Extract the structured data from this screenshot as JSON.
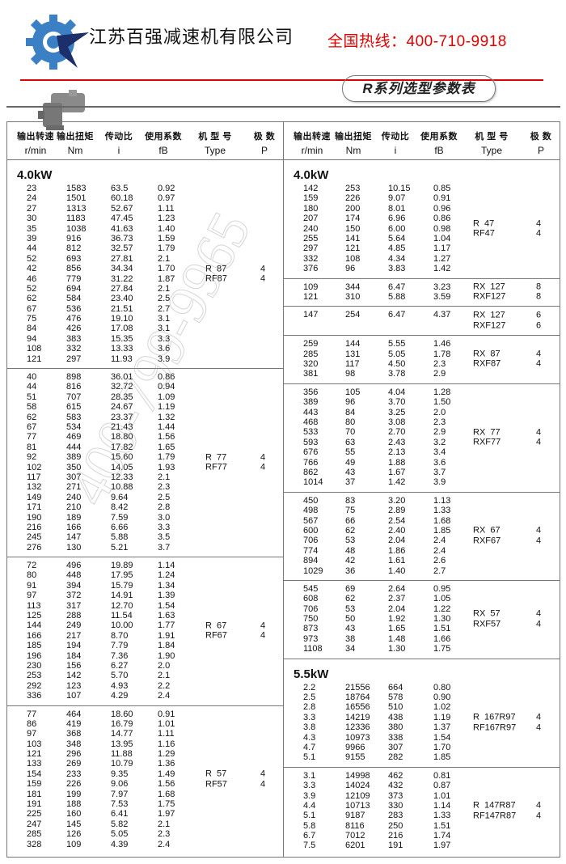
{
  "header": {
    "company": "江苏百强减速机有限公司",
    "hotline": "全国热线：400-710-9918",
    "title": "R系列选型参数表",
    "brand_colors": {
      "gear": "#3b7fc4",
      "star": "#1c2f6b",
      "hotline": "#e00000"
    }
  },
  "watermark": "400-799-9965",
  "columns": {
    "zh": [
      "输出转速",
      "输出扭矩",
      "传动比",
      "使用系数",
      "机 型 号",
      "极 数"
    ],
    "en": [
      "r/min",
      "Nm",
      "i",
      "fB",
      "Type",
      "P"
    ]
  },
  "left": [
    {
      "kw": "4.0kW",
      "types": [
        "R  87",
        "RF87"
      ],
      "poles": [
        "4",
        "4"
      ],
      "rows": [
        [
          "23",
          "1583",
          "63.5",
          "0.92"
        ],
        [
          "24",
          "1501",
          "60.18",
          "0.97"
        ],
        [
          "27",
          "1313",
          "52.67",
          "1.11"
        ],
        [
          "30",
          "1183",
          "47.45",
          "1.23"
        ],
        [
          "35",
          "1038",
          "41.63",
          "1.40"
        ],
        [
          "39",
          "916",
          "36.73",
          "1.59"
        ],
        [
          "44",
          "812",
          "32.57",
          "1.79"
        ],
        [
          "52",
          "693",
          "27.81",
          "2.1"
        ],
        [
          "42",
          "856",
          "34.34",
          "1.70"
        ],
        [
          "46",
          "779",
          "31.22",
          "1.87"
        ],
        [
          "52",
          "694",
          "27.84",
          "2.1"
        ],
        [
          "62",
          "584",
          "23.40",
          "2.5"
        ],
        [
          "67",
          "536",
          "21.51",
          "2.7"
        ],
        [
          "75",
          "476",
          "19.10",
          "3.1"
        ],
        [
          "84",
          "426",
          "17.08",
          "3.1"
        ],
        [
          "94",
          "383",
          "15.35",
          "3.3"
        ],
        [
          "108",
          "332",
          "13.33",
          "3.6"
        ],
        [
          "121",
          "297",
          "11.93",
          "3.9"
        ]
      ]
    },
    {
      "types": [
        "R  77",
        "RF77"
      ],
      "poles": [
        "4",
        "4"
      ],
      "rows": [
        [
          "40",
          "898",
          "36.01",
          "0.86"
        ],
        [
          "44",
          "816",
          "32.72",
          "0.94"
        ],
        [
          "51",
          "707",
          "28.35",
          "1.09"
        ],
        [
          "58",
          "615",
          "24.67",
          "1.19"
        ],
        [
          "62",
          "583",
          "23.37",
          "1.32"
        ],
        [
          "67",
          "534",
          "21.43",
          "1.44"
        ],
        [
          "77",
          "469",
          "18.80",
          "1.56"
        ],
        [
          "81",
          "444",
          "17.82",
          "1.65"
        ],
        [
          "92",
          "389",
          "15.60",
          "1.79"
        ],
        [
          "102",
          "350",
          "14.05",
          "1.93"
        ],
        [
          "117",
          "307",
          "12.33",
          "2.1"
        ],
        [
          "132",
          "271",
          "10.88",
          "2.3"
        ],
        [
          "149",
          "240",
          "9.64",
          "2.5"
        ],
        [
          "171",
          "210",
          "8.42",
          "2.8"
        ],
        [
          "190",
          "189",
          "7.59",
          "3.0"
        ],
        [
          "216",
          "166",
          "6.66",
          "3.3"
        ],
        [
          "245",
          "147",
          "5.88",
          "3.5"
        ],
        [
          "276",
          "130",
          "5.21",
          "3.7"
        ]
      ]
    },
    {
      "types": [
        "R  67",
        "RF67"
      ],
      "poles": [
        "4",
        "4"
      ],
      "rows": [
        [
          "72",
          "496",
          "19.89",
          "1.14"
        ],
        [
          "80",
          "448",
          "17.95",
          "1.24"
        ],
        [
          "91",
          "394",
          "15.79",
          "1.34"
        ],
        [
          "97",
          "372",
          "14.91",
          "1.39"
        ],
        [
          "113",
          "317",
          "12.70",
          "1.54"
        ],
        [
          "125",
          "288",
          "11.54",
          "1.63"
        ],
        [
          "144",
          "249",
          "10.00",
          "1.77"
        ],
        [
          "166",
          "217",
          "8.70",
          "1.91"
        ],
        [
          "185",
          "194",
          "7.79",
          "1.84"
        ],
        [
          "196",
          "184",
          "7.36",
          "1.90"
        ],
        [
          "230",
          "156",
          "6.27",
          "2.0"
        ],
        [
          "253",
          "142",
          "5.70",
          "2.1"
        ],
        [
          "292",
          "123",
          "4.93",
          "2.2"
        ],
        [
          "336",
          "107",
          "4.29",
          "2.4"
        ]
      ]
    },
    {
      "types": [
        "R  57",
        "RF57"
      ],
      "poles": [
        "4",
        "4"
      ],
      "rows": [
        [
          "77",
          "464",
          "18.60",
          "0.91"
        ],
        [
          "86",
          "419",
          "16.79",
          "1.01"
        ],
        [
          "97",
          "368",
          "14.77",
          "1.11"
        ],
        [
          "103",
          "348",
          "13.95",
          "1.16"
        ],
        [
          "121",
          "296",
          "11.88",
          "1.29"
        ],
        [
          "133",
          "269",
          "10.79",
          "1.36"
        ],
        [
          "154",
          "233",
          "9.35",
          "1.49"
        ],
        [
          "159",
          "226",
          "9.06",
          "1.56"
        ],
        [
          "181",
          "199",
          "7.97",
          "1.68"
        ],
        [
          "191",
          "188",
          "7.53",
          "1.75"
        ],
        [
          "225",
          "160",
          "6.41",
          "1.97"
        ],
        [
          "247",
          "145",
          "5.82",
          "2.1"
        ],
        [
          "285",
          "126",
          "5.05",
          "2.3"
        ],
        [
          "328",
          "109",
          "4.39",
          "2.4"
        ]
      ]
    }
  ],
  "right": [
    {
      "kw": "4.0kW",
      "types": [
        "R  47",
        "RF47"
      ],
      "poles": [
        "4",
        "4"
      ],
      "rows": [
        [
          "142",
          "253",
          "10.15",
          "0.85"
        ],
        [
          "159",
          "226",
          "9.07",
          "0.91"
        ],
        [
          "180",
          "200",
          "8.01",
          "0.96"
        ],
        [
          "207",
          "174",
          "6.96",
          "0.86"
        ],
        [
          "240",
          "150",
          "6.00",
          "0.98"
        ],
        [
          "255",
          "141",
          "5.64",
          "1.04"
        ],
        [
          "297",
          "121",
          "4.85",
          "1.17"
        ],
        [
          "332",
          "108",
          "4.34",
          "1.27"
        ],
        [
          "376",
          "96",
          "3.83",
          "1.42"
        ]
      ]
    },
    {
      "types": [
        "RX  127",
        "RXF127"
      ],
      "poles": [
        "8",
        "8"
      ],
      "rows": [
        [
          "109",
          "344",
          "6.47",
          "3.23"
        ],
        [
          "121",
          "310",
          "5.88",
          "3.59"
        ]
      ]
    },
    {
      "types": [
        "RX  127",
        "RXF127"
      ],
      "poles": [
        "6",
        "6"
      ],
      "rows": [
        [
          "147",
          "254",
          "6.47",
          "4.37"
        ]
      ]
    },
    {
      "types": [
        "RX  87",
        "RXF87"
      ],
      "poles": [
        "4",
        "4"
      ],
      "rows": [
        [
          "259",
          "144",
          "5.55",
          "1.46"
        ],
        [
          "285",
          "131",
          "5.05",
          "1.78"
        ],
        [
          "320",
          "117",
          "4.50",
          "2.3"
        ],
        [
          "381",
          "98",
          "3.78",
          "2.9"
        ]
      ]
    },
    {
      "types": [
        "RX  77",
        "RXF77"
      ],
      "poles": [
        "4",
        "4"
      ],
      "rows": [
        [
          "356",
          "105",
          "4.04",
          "1.28"
        ],
        [
          "389",
          "96",
          "3.70",
          "1.50"
        ],
        [
          "443",
          "84",
          "3.25",
          "2.0"
        ],
        [
          "468",
          "80",
          "3.08",
          "2.3"
        ],
        [
          "533",
          "70",
          "2.70",
          "2.9"
        ],
        [
          "593",
          "63",
          "2.43",
          "3.2"
        ],
        [
          "676",
          "55",
          "2.13",
          "3.4"
        ],
        [
          "766",
          "49",
          "1.88",
          "3.6"
        ],
        [
          "862",
          "43",
          "1.67",
          "3.7"
        ],
        [
          "1014",
          "37",
          "1.42",
          "3.9"
        ]
      ]
    },
    {
      "types": [
        "RX  67",
        "RXF67"
      ],
      "poles": [
        "4",
        "4"
      ],
      "rows": [
        [
          "450",
          "83",
          "3.20",
          "1.13"
        ],
        [
          "498",
          "75",
          "2.89",
          "1.33"
        ],
        [
          "567",
          "66",
          "2.54",
          "1.68"
        ],
        [
          "600",
          "62",
          "2.40",
          "1.85"
        ],
        [
          "706",
          "53",
          "2.04",
          "2.4"
        ],
        [
          "774",
          "48",
          "1.86",
          "2.4"
        ],
        [
          "894",
          "42",
          "1.61",
          "2.6"
        ],
        [
          "1029",
          "36",
          "1.40",
          "2.7"
        ]
      ]
    },
    {
      "types": [
        "RX  57",
        "RXF57"
      ],
      "poles": [
        "4",
        "4"
      ],
      "rows": [
        [
          "545",
          "69",
          "2.64",
          "0.95"
        ],
        [
          "608",
          "62",
          "2.37",
          "1.05"
        ],
        [
          "706",
          "53",
          "2.04",
          "1.22"
        ],
        [
          "750",
          "50",
          "1.92",
          "1.30"
        ],
        [
          "873",
          "43",
          "1.65",
          "1.51"
        ],
        [
          "973",
          "38",
          "1.48",
          "1.66"
        ],
        [
          "1108",
          "34",
          "1.30",
          "1.75"
        ]
      ]
    },
    {
      "kw": "5.5kW",
      "types": [
        "R  167R97",
        "RF167R97"
      ],
      "poles": [
        "4",
        "4"
      ],
      "rows": [
        [
          "2.2",
          "21556",
          "664",
          "0.80"
        ],
        [
          "2.5",
          "18764",
          "578",
          "0.90"
        ],
        [
          "2.8",
          "16556",
          "510",
          "1.02"
        ],
        [
          "3.3",
          "14219",
          "438",
          "1.19"
        ],
        [
          "3.8",
          "12336",
          "380",
          "1.37"
        ],
        [
          "4.3",
          "10973",
          "338",
          "1.54"
        ],
        [
          "4.7",
          "9966",
          "307",
          "1.70"
        ],
        [
          "5.1",
          "9155",
          "282",
          "1.85"
        ]
      ]
    },
    {
      "types": [
        "R  147R87",
        "RF147R87"
      ],
      "poles": [
        "4",
        "4"
      ],
      "rows": [
        [
          "3.1",
          "14998",
          "462",
          "0.81"
        ],
        [
          "3.3",
          "14024",
          "432",
          "0.87"
        ],
        [
          "3.9",
          "12109",
          "373",
          "1.01"
        ],
        [
          "4.4",
          "10713",
          "330",
          "1.14"
        ],
        [
          "5.1",
          "9187",
          "283",
          "1.33"
        ],
        [
          "5.8",
          "8116",
          "250",
          "1.51"
        ],
        [
          "6.7",
          "7012",
          "216",
          "1.74"
        ],
        [
          "7.5",
          "6201",
          "191",
          "1.97"
        ]
      ]
    }
  ]
}
